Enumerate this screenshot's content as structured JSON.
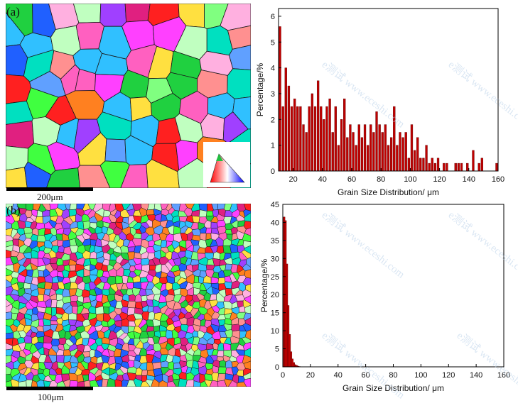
{
  "panel_a": {
    "label": "(a)",
    "scale_label": "200μm"
  },
  "panel_b": {
    "label": "(b)",
    "scale_label": "100μm"
  },
  "watermark": "e测试 www.eceshi.com",
  "chart_data": [
    {
      "type": "bar",
      "xlabel": "Grain Size Distribution/ μm",
      "ylabel": "Percentage/%",
      "xlim": [
        10,
        160
      ],
      "ylim": [
        0,
        6.3
      ],
      "xticks": [
        20,
        40,
        60,
        80,
        100,
        120,
        140,
        160
      ],
      "yticks": [
        0,
        1,
        2,
        3,
        4,
        5,
        6
      ],
      "bar_width": 1.4,
      "bar_color": "#c00000",
      "x": [
        11,
        13,
        15,
        17,
        19,
        21,
        23,
        25,
        27,
        29,
        31,
        33,
        35,
        37,
        39,
        41,
        43,
        45,
        47,
        49,
        51,
        53,
        55,
        57,
        59,
        61,
        63,
        65,
        67,
        69,
        71,
        73,
        75,
        77,
        79,
        81,
        83,
        85,
        87,
        89,
        91,
        93,
        95,
        97,
        99,
        101,
        103,
        105,
        107,
        109,
        111,
        113,
        115,
        117,
        119,
        123,
        125,
        131,
        133,
        135,
        139,
        143,
        147,
        149,
        159
      ],
      "values": [
        5.6,
        2.5,
        4.0,
        3.3,
        2.5,
        2.8,
        2.5,
        2.5,
        1.8,
        1.5,
        2.5,
        3.0,
        2.5,
        3.5,
        2.5,
        2.0,
        2.5,
        2.8,
        1.5,
        2.5,
        1.0,
        2.0,
        2.8,
        1.3,
        1.8,
        1.5,
        1.0,
        1.8,
        1.3,
        1.8,
        1.0,
        1.8,
        1.5,
        2.3,
        1.8,
        1.5,
        1.8,
        1.0,
        1.3,
        2.5,
        1.0,
        1.5,
        1.3,
        1.5,
        0.5,
        1.8,
        0.8,
        1.3,
        0.5,
        0.5,
        1.0,
        0.3,
        0.5,
        0.3,
        0.5,
        0.3,
        0.3,
        0.3,
        0.3,
        0.3,
        0.3,
        0.8,
        0.3,
        0.5,
        0.3
      ]
    },
    {
      "type": "bar",
      "xlabel": "Grain Size Distribution/ μm",
      "ylabel": "Percentage/%",
      "xlim": [
        0,
        160
      ],
      "ylim": [
        0,
        45
      ],
      "xticks": [
        0,
        20,
        40,
        60,
        80,
        100,
        120,
        140,
        160
      ],
      "yticks": [
        0,
        5,
        10,
        15,
        20,
        25,
        30,
        35,
        40,
        45
      ],
      "bar_width": 1.2,
      "bar_color": "#c00000",
      "x": [
        1,
        2,
        3,
        4,
        5,
        6,
        7,
        8,
        9,
        10,
        11,
        12
      ],
      "values": [
        41.5,
        40.5,
        28.5,
        17.0,
        9.0,
        4.2,
        2.2,
        1.2,
        0.6,
        0.4,
        0.2,
        0.1
      ]
    }
  ]
}
